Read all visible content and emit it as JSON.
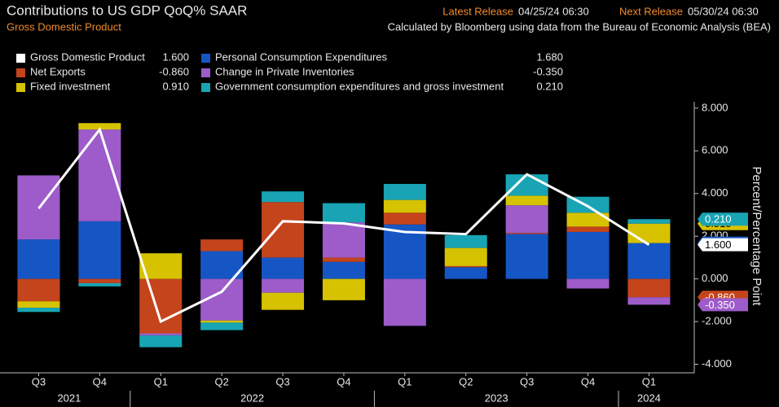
{
  "chart_data": {
    "type": "bar",
    "stacked": true,
    "title": "Contributions to US GDP QoQ% SAAR",
    "subtitle": "Gross Domestic Product",
    "latest_release_label": "Latest Release",
    "latest_release": "04/25/24 06:30",
    "next_release_label": "Next Release",
    "next_release": "05/30/24 06:30",
    "note": "Calculated by Bloomberg using data from the Bureau of Economic Analysis (BEA)",
    "y_label": "Percent/Percentage Point",
    "categories": [
      "Q3",
      "Q4",
      "Q1",
      "Q2",
      "Q3",
      "Q4",
      "Q1",
      "Q2",
      "Q3",
      "Q4",
      "Q1"
    ],
    "years": [
      "2021",
      "2021",
      "2022",
      "2022",
      "2022",
      "2022",
      "2023",
      "2023",
      "2023",
      "2023",
      "2024"
    ],
    "series": [
      {
        "name": "Gross Domestic Product",
        "type": "line",
        "color": "#ffffff",
        "values": [
          3.3,
          7.0,
          -2.0,
          -0.6,
          2.7,
          2.6,
          2.2,
          2.1,
          4.9,
          3.4,
          1.6
        ],
        "value_labels": [
          null,
          null,
          null,
          null,
          null,
          null,
          null,
          null,
          null,
          null,
          "1.600"
        ]
      },
      {
        "name": "Personal Consumption Expenditures",
        "color": "#1656c4",
        "values": [
          1.85,
          2.7,
          0,
          1.3,
          1.0,
          0.8,
          2.55,
          0.55,
          2.1,
          2.2,
          1.68
        ],
        "value_labels": [
          null,
          null,
          null,
          null,
          null,
          null,
          null,
          null,
          null,
          null,
          "1.680"
        ]
      },
      {
        "name": "Net Exports",
        "color": "#c4441c",
        "values": [
          -1.05,
          -0.2,
          -2.55,
          0.55,
          2.6,
          0.2,
          0.55,
          0.05,
          0.05,
          0.25,
          -0.86
        ],
        "value_labels": [
          null,
          null,
          null,
          null,
          null,
          null,
          null,
          null,
          null,
          null,
          "-0.860"
        ]
      },
      {
        "name": "Change in Private Inventories",
        "color": "#9d5cc9",
        "values": [
          3.0,
          4.3,
          -0.1,
          -1.95,
          -0.65,
          1.65,
          -2.2,
          0,
          1.3,
          -0.45,
          -0.35
        ],
        "value_labels": [
          null,
          null,
          null,
          null,
          null,
          null,
          null,
          null,
          null,
          null,
          "-0.350"
        ]
      },
      {
        "name": "Fixed investment",
        "color": "#d6c200",
        "values": [
          -0.3,
          0.3,
          1.2,
          -0.1,
          -0.8,
          -1.0,
          0.6,
          0.85,
          0.45,
          0.65,
          0.91
        ],
        "value_labels": [
          null,
          null,
          null,
          null,
          null,
          null,
          null,
          null,
          null,
          null,
          "0.910"
        ]
      },
      {
        "name": "Government consumption expenditures and gross investment",
        "color": "#18a4b4",
        "values": [
          -0.2,
          -0.15,
          -0.55,
          -0.35,
          0.5,
          0.9,
          0.75,
          0.6,
          1.0,
          0.75,
          0.21
        ],
        "value_labels": [
          null,
          null,
          null,
          null,
          null,
          null,
          null,
          null,
          null,
          null,
          "0.210"
        ]
      }
    ],
    "ylim": [
      -4.4,
      8.3
    ],
    "yticks": [
      {
        "value": -4,
        "label": "-4.000"
      },
      {
        "value": -2,
        "label": "-2.000"
      },
      {
        "value": 0,
        "label": "0.000"
      },
      {
        "value": 2,
        "label": "2.000"
      },
      {
        "value": 4,
        "label": "4.000"
      },
      {
        "value": 6,
        "label": "6.000"
      },
      {
        "value": 8,
        "label": "8.000"
      }
    ],
    "grid": false
  }
}
